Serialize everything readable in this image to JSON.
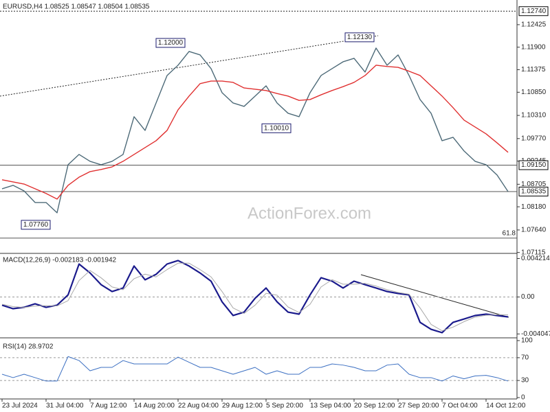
{
  "chart_data": [
    {
      "type": "line",
      "title": "EURUSD,H4  1.08525 1.08547 1.08504 1.08535",
      "watermark": "ActionForex.com",
      "categories": [
        "23 Jul 2024",
        null,
        null,
        null,
        "31 Jul 04:00",
        null,
        null,
        null,
        "7 Aug 12:00",
        null,
        null,
        null,
        "14 Aug 20:00",
        null,
        null,
        null,
        "22 Aug 04:00",
        null,
        null,
        null,
        "29 Aug 12:00",
        null,
        null,
        null,
        "5 Sep 20:00",
        null,
        null,
        null,
        "13 Sep 04:00",
        null,
        null,
        null,
        "20 Sep 12:00",
        null,
        null,
        null,
        "27 Sep 20:00",
        null,
        null,
        null,
        "7 Oct 04:00",
        null,
        null,
        null,
        "14 Oct 12:00",
        null,
        null
      ],
      "series": [
        {
          "color": "#4d6a78",
          "values": [
            1.086,
            1.0868,
            1.0855,
            1.0828,
            1.0828,
            1.0804,
            1.0916,
            1.094,
            1.0924,
            1.0916,
            1.0924,
            1.094,
            1.1028,
            1.0996,
            1.106,
            1.1124,
            1.1148,
            1.118,
            1.1172,
            1.114,
            1.1084,
            1.106,
            1.1052,
            1.1076,
            1.11,
            1.106,
            1.1036,
            1.1028,
            1.1084,
            1.1124,
            1.114,
            1.1156,
            1.1164,
            1.1132,
            1.1188,
            1.1148,
            1.1172,
            1.1124,
            1.1068,
            1.1036,
            1.0972,
            1.098,
            1.0948,
            1.0924,
            1.0916,
            1.0892,
            1.08535
          ]
        },
        {
          "color": "#e03030",
          "values": [
            1.0881,
            1.0876,
            1.0871,
            1.086,
            1.0849,
            1.0836,
            1.0868,
            1.0887,
            1.09,
            1.0905,
            1.0911,
            1.0924,
            1.094,
            1.0956,
            1.0972,
            1.0996,
            1.1044,
            1.1076,
            1.1105,
            1.1111,
            1.1111,
            1.1108,
            1.1095,
            1.1092,
            1.1089,
            1.1082,
            1.1076,
            1.1066,
            1.1068,
            1.1079,
            1.1089,
            1.1098,
            1.1108,
            1.1124,
            1.1148,
            1.1145,
            1.1143,
            1.1134,
            1.1124,
            1.11,
            1.1076,
            1.1049,
            1.102,
            1.1004,
            1.0988,
            1.0967,
            1.0945
          ]
        }
      ],
      "ylim": [
        1.0711,
        1.13
      ],
      "yticks": [
        1.12425,
        {
          "value": 1.119,
          "label": "1.11900"
        },
        1.11375,
        {
          "value": 1.1085,
          "label": "1.10850"
        },
        {
          "value": 1.1031,
          "label": "1.10310"
        },
        {
          "value": 1.0977,
          "label": "1.09770"
        },
        1.09245,
        1.08705,
        {
          "value": 1.0818,
          "label": "1.08180"
        },
        {
          "value": 1.0764,
          "label": "1.07640"
        },
        1.07115
      ],
      "hlines": [
        {
          "value": 1.1274,
          "label": "1.12740",
          "style": "dotted",
          "label_position": "axis"
        },
        {
          "value": 1.0915,
          "label": "1.09150",
          "style": "solid",
          "label_position": "axis"
        },
        {
          "value": 1.08535,
          "label": "1.08535",
          "style": "solid",
          "label_position": "axis"
        },
        {
          "value": 1.0745,
          "label": "61.8",
          "style": "solid",
          "label_position": "inside"
        }
      ],
      "annotations": [
        {
          "label": "1.12000",
          "value": 1.12
        },
        {
          "label": "1.12130",
          "value": 1.1213
        },
        {
          "label": "1.10010",
          "value": 1.1001
        },
        {
          "label": "1.07760",
          "value": 1.0776
        }
      ]
    },
    {
      "type": "line",
      "title": "MACD(12,26,9) -0.002183 -0.001942",
      "zero_line": true,
      "series": [
        {
          "color": "#1a1a8c",
          "width": 2.2,
          "values": [
            -0.0009,
            -0.00128,
            -0.00113,
            -0.00075,
            -0.00113,
            -0.0009,
            0.00023,
            0.00361,
            0.00263,
            0.00135,
            0.0006,
            0.00098,
            0.00339,
            0.00188,
            0.00248,
            0.00361,
            0.00399,
            0.00339,
            0.00263,
            0.00173,
            -0.00053,
            -0.00203,
            -0.00166,
            -0.00015,
            0.00098,
            -0.00053,
            -0.00166,
            -0.00188,
            0.00023,
            0.00211,
            0.00173,
            0.00098,
            0.00173,
            0.00135,
            0.00098,
            0.0006,
            0.00038,
            0.00023,
            -0.00278,
            -0.00354,
            -0.00391,
            -0.00278,
            -0.00241,
            -0.00203,
            -0.00188,
            -0.00203,
            -0.002183
          ]
        },
        {
          "color": "#a8a8a8",
          "width": 1,
          "values": [
            -0.0008,
            -0.00105,
            -0.00115,
            -0.001,
            -0.00095,
            -0.00098,
            -0.0004,
            0.0018,
            0.0029,
            0.0021,
            0.0011,
            0.0008,
            0.002,
            0.0025,
            0.0022,
            0.003,
            0.0037,
            0.0037,
            0.003,
            0.0022,
            0.0006,
            -0.0012,
            -0.0018,
            -0.0009,
            0.0004,
            0.0002,
            -0.0011,
            -0.0017,
            -0.0008,
            0.0011,
            0.0019,
            0.0014,
            0.0014,
            0.0015,
            0.0012,
            0.0008,
            0.0005,
            0.0003,
            -0.0012,
            -0.003,
            -0.0037,
            -0.0033,
            -0.0027,
            -0.0022,
            -0.002,
            -0.00195,
            -0.001942
          ]
        }
      ],
      "ylim": [
        -0.0044,
        0.0047
      ],
      "yticks": [
        0.004214,
        {
          "value": 0,
          "label": "0.00"
        },
        -0.004047
      ]
    },
    {
      "type": "line",
      "title": "RSI(14) 28.9702",
      "grid": true,
      "series": [
        {
          "color": "#3b6fc2",
          "width": 1,
          "values": [
            41,
            35,
            41,
            35,
            29,
            29,
            72,
            65,
            47,
            53,
            53,
            65,
            59,
            59,
            59,
            59,
            71,
            62,
            53,
            53,
            47,
            41,
            47,
            53,
            41,
            47,
            41,
            41,
            53,
            53,
            59,
            57,
            53,
            47,
            47,
            57,
            59,
            41,
            35,
            35,
            29,
            38,
            33,
            38,
            39,
            35,
            28.9702
          ]
        }
      ],
      "ylim": [
        0,
        100
      ],
      "yticks": [
        100,
        70,
        30,
        0
      ]
    }
  ]
}
